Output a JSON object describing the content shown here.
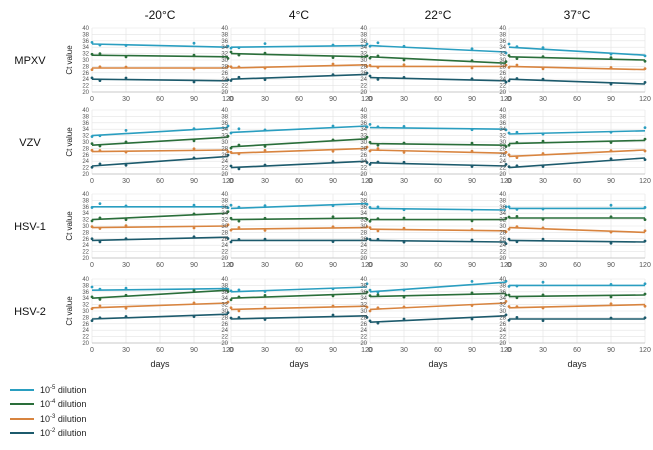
{
  "colors": {
    "d5": "#2a9ec0",
    "d4": "#2a6e3a",
    "d3": "#d8843f",
    "d2": "#1c5a6c",
    "grid": "#e3e3e3",
    "axis_text": "#555555"
  },
  "labels": {
    "columns": [
      "-20°C",
      "4°C",
      "22°C",
      "37°C"
    ],
    "rows": [
      "MPXV",
      "VZV",
      "HSV-1",
      "HSV-2"
    ],
    "ylabel": "Ct value",
    "xlabel": "days"
  },
  "legend": [
    {
      "base": "10",
      "exp": "-5",
      "suffix": " dilution",
      "color_key": "d5"
    },
    {
      "base": "10",
      "exp": "-4",
      "suffix": " dilution",
      "color_key": "d4"
    },
    {
      "base": "10",
      "exp": "-3",
      "suffix": " dilution",
      "color_key": "d3"
    },
    {
      "base": "10",
      "exp": "-2",
      "suffix": " dilution",
      "color_key": "d2"
    }
  ],
  "chart_data": {
    "type": "scatter",
    "xticks": [
      0,
      30,
      60,
      90,
      120
    ],
    "yticks": [
      20,
      22,
      24,
      26,
      28,
      30,
      32,
      34,
      36,
      38,
      40
    ],
    "xlim": [
      0,
      120
    ],
    "ylim": [
      20,
      40
    ],
    "grid": true,
    "x_points": [
      0,
      7,
      30,
      90,
      120
    ],
    "series_order": [
      "d5",
      "d4",
      "d3",
      "d2"
    ],
    "panels": [
      [
        {
          "d5": [
            35.0,
            34.0
          ],
          "d4": [
            31.5,
            31.0
          ],
          "d3": [
            27.5,
            27.5
          ],
          "d2": [
            24.0,
            23.5
          ]
        },
        {
          "d5": [
            34.0,
            34.5
          ],
          "d4": [
            32.0,
            31.0
          ],
          "d3": [
            27.5,
            28.5
          ],
          "d2": [
            24.0,
            25.5
          ]
        },
        {
          "d5": [
            34.5,
            32.5
          ],
          "d4": [
            31.0,
            29.0
          ],
          "d3": [
            28.0,
            28.0
          ],
          "d2": [
            24.5,
            23.5
          ]
        },
        {
          "d5": [
            34.0,
            31.5
          ],
          "d4": [
            31.0,
            30.0
          ],
          "d3": [
            28.0,
            27.0
          ],
          "d2": [
            24.0,
            22.5
          ]
        }
      ],
      [
        {
          "d5": [
            32.0,
            34.5
          ],
          "d4": [
            29.0,
            31.5
          ],
          "d3": [
            27.0,
            27.5
          ],
          "d2": [
            22.5,
            25.5
          ]
        },
        {
          "d5": [
            33.0,
            35.0
          ],
          "d4": [
            28.5,
            31.0
          ],
          "d3": [
            26.5,
            28.0
          ],
          "d2": [
            22.0,
            24.0
          ]
        },
        {
          "d5": [
            34.5,
            34.0
          ],
          "d4": [
            29.5,
            29.0
          ],
          "d3": [
            27.5,
            26.5
          ],
          "d2": [
            23.5,
            22.5
          ]
        },
        {
          "d5": [
            32.5,
            33.5
          ],
          "d4": [
            29.5,
            30.5
          ],
          "d3": [
            25.5,
            27.5
          ],
          "d2": [
            22.0,
            25.0
          ]
        }
      ],
      [
        {
          "d5": [
            36.0,
            36.0
          ],
          "d4": [
            32.0,
            34.0
          ],
          "d3": [
            29.5,
            30.0
          ],
          "d2": [
            25.5,
            26.5
          ]
        },
        {
          "d5": [
            35.5,
            37.0
          ],
          "d4": [
            32.0,
            32.5
          ],
          "d3": [
            29.0,
            29.5
          ],
          "d2": [
            25.5,
            25.5
          ]
        },
        {
          "d5": [
            35.5,
            35.0
          ],
          "d4": [
            32.0,
            32.0
          ],
          "d3": [
            29.0,
            28.5
          ],
          "d2": [
            25.5,
            25.0
          ]
        },
        {
          "d5": [
            35.5,
            35.5
          ],
          "d4": [
            32.5,
            32.5
          ],
          "d3": [
            29.5,
            28.0
          ],
          "d2": [
            25.5,
            25.0
          ]
        }
      ],
      [
        {
          "d5": [
            36.5,
            37.0
          ],
          "d4": [
            34.0,
            36.5
          ],
          "d3": [
            31.0,
            32.5
          ],
          "d2": [
            27.5,
            29.0
          ]
        },
        {
          "d5": [
            36.0,
            37.5
          ],
          "d4": [
            34.0,
            35.5
          ],
          "d3": [
            30.5,
            31.5
          ],
          "d2": [
            27.5,
            28.5
          ]
        },
        {
          "d5": [
            36.0,
            39.0
          ],
          "d4": [
            34.5,
            35.5
          ],
          "d3": [
            30.5,
            32.5
          ],
          "d2": [
            26.5,
            28.5
          ]
        },
        {
          "d5": [
            38.0,
            38.0
          ],
          "d4": [
            34.5,
            35.0
          ],
          "d3": [
            31.0,
            32.0
          ],
          "d2": [
            27.5,
            27.5
          ]
        }
      ]
    ],
    "scatter_offsets": {
      "d5": [
        0.5,
        -0.3,
        -0.2,
        1.0,
        0.3
      ],
      "d4": [
        0.3,
        0.5,
        -0.4,
        0.4,
        -0.5
      ],
      "d3": [
        -0.5,
        0.4,
        0.3,
        -0.3,
        0.5
      ],
      "d2": [
        0.4,
        -0.4,
        0.5,
        -0.5,
        0.3
      ]
    }
  }
}
